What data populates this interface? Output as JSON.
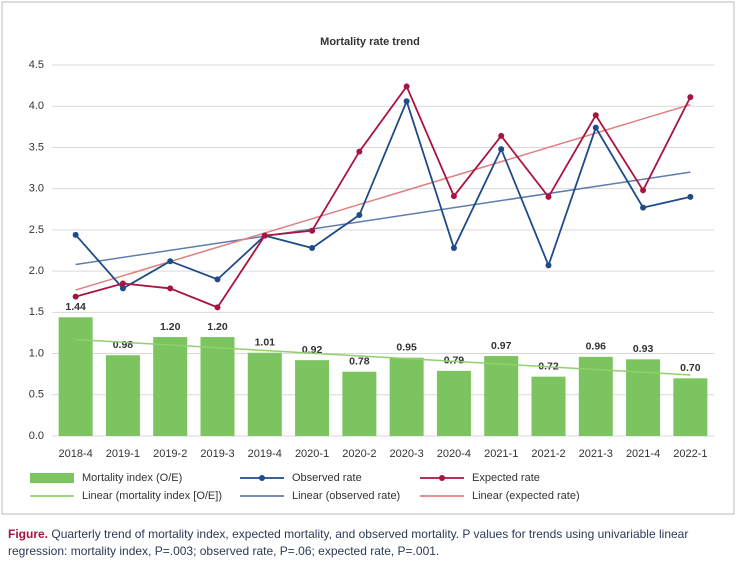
{
  "chart_data": {
    "type": "combo",
    "title": "Mortality rate trend",
    "categories": [
      "2018-4",
      "2019-1",
      "2019-2",
      "2019-3",
      "2019-4",
      "2020-1",
      "2020-2",
      "2020-3",
      "2020-4",
      "2021-1",
      "2021-2",
      "2021-3",
      "2021-4",
      "2022-1"
    ],
    "ylim": [
      0,
      4.5
    ],
    "yticks": [
      {
        "value": 0,
        "label": "0.0"
      },
      {
        "value": 0.5,
        "label": "0.5"
      },
      {
        "value": 1,
        "label": "1.0"
      },
      {
        "value": 1.5,
        "label": "1.5"
      },
      {
        "value": 2,
        "label": "2.0"
      },
      {
        "value": 2.5,
        "label": "2.5"
      },
      {
        "value": 3,
        "label": "3.0"
      },
      {
        "value": 3.5,
        "label": "3.5"
      },
      {
        "value": 4,
        "label": "4.0"
      },
      {
        "value": 4.5,
        "label": "4.5"
      }
    ],
    "grid": true,
    "series": [
      {
        "name": "Mortality index (O/E)",
        "type": "bar",
        "color": "#7cc45f",
        "values": [
          1.44,
          0.98,
          1.2,
          1.2,
          1.01,
          0.92,
          0.78,
          0.95,
          0.79,
          0.97,
          0.72,
          0.96,
          0.93,
          0.7
        ],
        "value_labels": [
          "1.44",
          "0.98",
          "1.20",
          "1.20",
          "1.01",
          "0.92",
          "0.78",
          "0.95",
          "0.79",
          "0.97",
          "0.72",
          "0.96",
          "0.93",
          "0.70"
        ]
      },
      {
        "name": "Observed rate",
        "type": "line",
        "color": "#1f4c88",
        "values": [
          2.44,
          1.79,
          2.12,
          1.9,
          2.43,
          2.28,
          2.68,
          4.06,
          2.28,
          3.48,
          2.07,
          3.74,
          2.77,
          2.9
        ]
      },
      {
        "name": "Expected rate",
        "type": "line",
        "color": "#a8143f",
        "values": [
          1.69,
          1.85,
          1.79,
          1.56,
          2.43,
          2.49,
          3.45,
          4.24,
          2.91,
          3.64,
          2.9,
          3.89,
          2.98,
          4.11
        ]
      },
      {
        "name": "Linear (mortality index [O/E])",
        "type": "trend",
        "color": "#8fd16c",
        "x": [
          "2018-4",
          "2022-1"
        ],
        "values": [
          1.17,
          0.74
        ]
      },
      {
        "name": "Linear (observed rate)",
        "type": "trend",
        "color": "#5f7cae",
        "x": [
          "2018-4",
          "2022-1"
        ],
        "values": [
          2.08,
          3.2
        ]
      },
      {
        "name": "Linear (expected rate)",
        "type": "trend",
        "color": "#e07f80",
        "x": [
          "2018-4",
          "2022-1"
        ],
        "values": [
          1.77,
          4.02
        ]
      }
    ]
  },
  "caption": {
    "label": "Figure.",
    "text": "Quarterly trend of mortality index, expected mortality, and observed mortality. P values for trends using univariable linear regression: mortality index, P=.003; observed rate, P=.06; expected rate, P=.001."
  }
}
